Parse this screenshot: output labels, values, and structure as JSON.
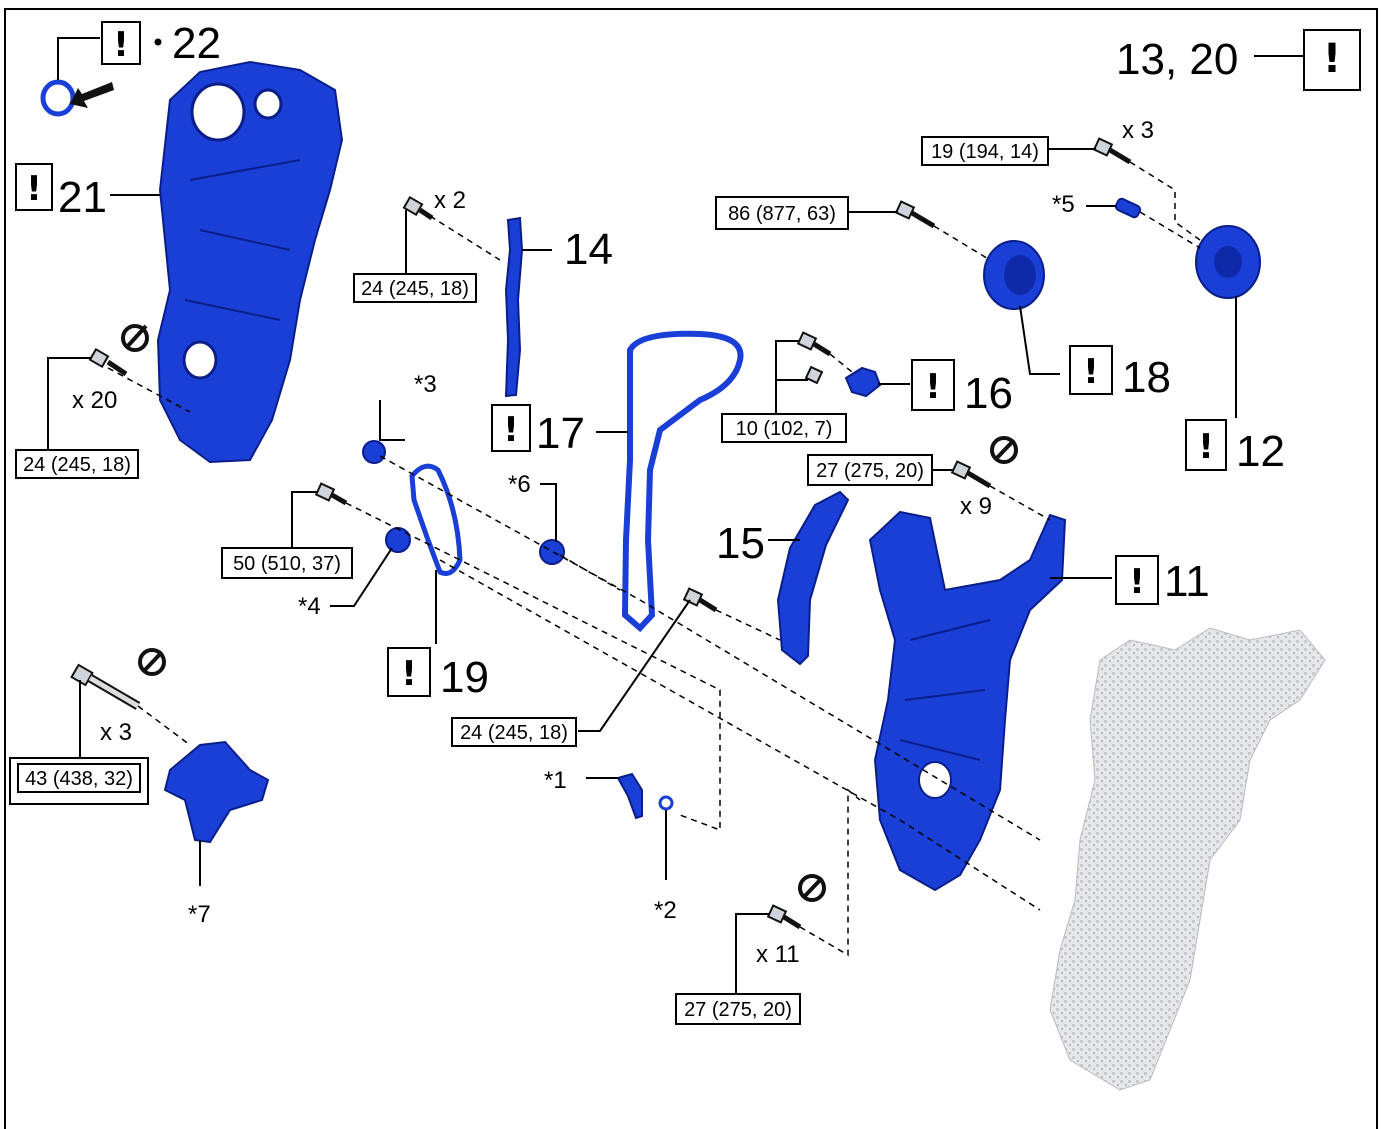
{
  "callouts": {
    "c22": "22",
    "c21": "21",
    "c14": "14",
    "c17": "17",
    "c16": "16",
    "c18": "18",
    "c12": "12",
    "c11": "11",
    "c15": "15",
    "c19": "19",
    "c13_20": "13, 20",
    "bang": "!"
  },
  "quantities": {
    "x20": "x 20",
    "x2": "x 2",
    "x3_top": "x 3",
    "x9": "x 9",
    "x3_left": "x 3",
    "x11": "x 11"
  },
  "notes": {
    "n1": "*1",
    "n2": "*2",
    "n3": "*3",
    "n4": "*4",
    "n5": "*5",
    "n6": "*6",
    "n7": "*7"
  },
  "torques": {
    "t_left": "24 (245, 18)",
    "t_x2": "24 (245, 18)",
    "t_19": "19 (194, 14)",
    "t_86": "86 (877, 63)",
    "t_10": "10 (102, 7)",
    "t_27a": "27 (275, 20)",
    "t_50": "50 (510, 37)",
    "t_24mid": "24 (245, 18)",
    "t_43": "43 (438, 32)",
    "t_27b": "27 (275, 20)"
  },
  "colors": {
    "part_blue": "#1a3fd6",
    "engine_grey": "#d9dadd"
  }
}
